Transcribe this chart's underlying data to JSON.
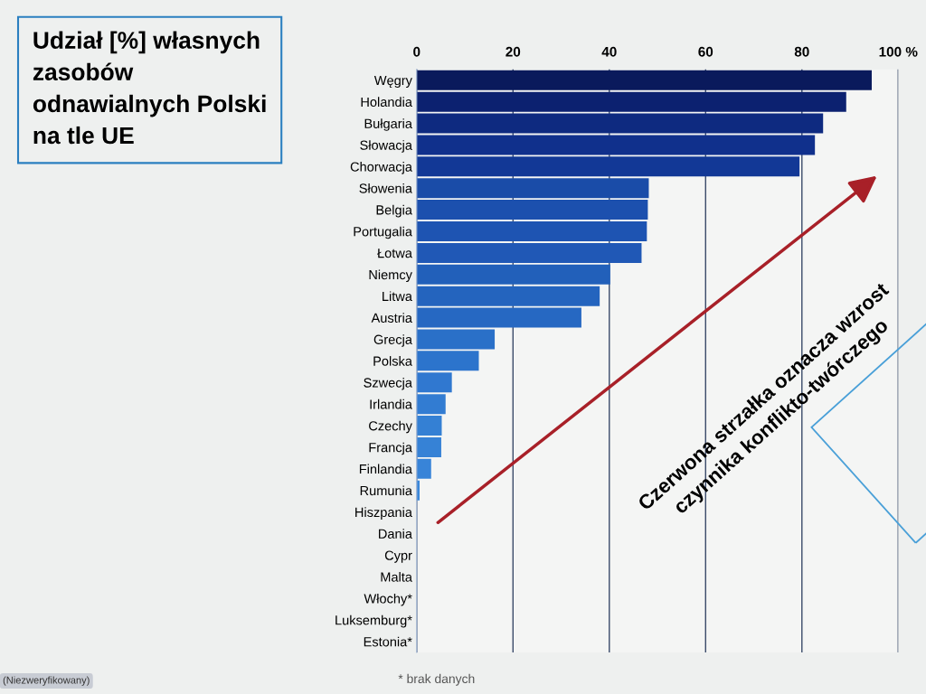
{
  "chart_data": {
    "type": "bar",
    "orientation": "horizontal",
    "title": "Udział [%] własnych zasobów odnawialnych Polski na tle UE",
    "categories": [
      "Węgry",
      "Holandia",
      "Bułgaria",
      "Słowacja",
      "Chorwacja",
      "Słowenia",
      "Belgia",
      "Portugalia",
      "Łotwa",
      "Niemcy",
      "Litwa",
      "Austria",
      "Grecja",
      "Polska",
      "Szwecja",
      "Irlandia",
      "Czechy",
      "Francja",
      "Finlandia",
      "Rumunia",
      "Hiszpania",
      "Dania",
      "Cypr",
      "Malta",
      "Włochy*",
      "Luksemburg*",
      "Estonia*"
    ],
    "values": [
      94.5,
      89.2,
      84.4,
      82.7,
      79.5,
      48.2,
      48.0,
      47.8,
      46.7,
      40.2,
      38.0,
      34.2,
      16.2,
      12.9,
      7.3,
      6.0,
      5.2,
      5.1,
      3.0,
      0.6,
      0,
      0,
      0,
      0,
      null,
      null,
      null
    ],
    "colors": [
      "#0a1a5c",
      "#0c2170",
      "#0e2a80",
      "#10308c",
      "#123896",
      "#1a4ca8",
      "#1c50ae",
      "#1e54b2",
      "#2058b6",
      "#2260ba",
      "#2464be",
      "#2668c2",
      "#2a70c8",
      "#2c74cc",
      "#3078d0",
      "#327cd2",
      "#3480d4",
      "#3682d6",
      "#3884d8",
      "#3a88da",
      "#3a88da",
      "#3a88da",
      "#3a88da",
      "#3a88da",
      "#3a88da",
      "#3a88da",
      "#3a88da"
    ],
    "xlim": [
      0,
      100
    ],
    "xticks": [
      0,
      20,
      40,
      60,
      80,
      {
        "value": 100,
        "label": "100 %"
      }
    ],
    "grid": "x",
    "annotations": [
      "Czerwona strzałka oznacza wzrost czynnika konflikto-twórczego",
      "* brak danych",
      "(Niezweryfikowany)"
    ]
  }
}
